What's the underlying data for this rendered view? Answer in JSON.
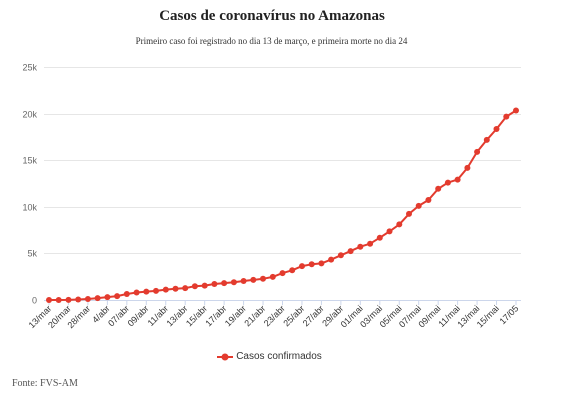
{
  "chart_data": {
    "type": "line",
    "title": "Casos de coronavírus no Amazonas",
    "subtitle": "Primeiro caso foi registrado no dia 13 de março, e primeira morte no dia 24",
    "categories": [
      "13/mar",
      "",
      "20/mar",
      "",
      "28/mar",
      "",
      "4/abr",
      "",
      "07/abr",
      "",
      "09/abr",
      "",
      "11/abr",
      "",
      "13/abr",
      "",
      "15/abr",
      "",
      "17/abr",
      "",
      "19/abr",
      "",
      "21/abr",
      "",
      "23/abr",
      "",
      "25/abr",
      "",
      "27/abr",
      "",
      "29/abr",
      "",
      "01/mai",
      "",
      "03/mai",
      "",
      "05/mai",
      "",
      "07/mai",
      "",
      "09/mai",
      "",
      "11/mai",
      "",
      "13/mai",
      "",
      "15/mai",
      "",
      "17/05"
    ],
    "series": [
      {
        "name": "Casos confirmados",
        "color": "#e33b2e",
        "values": [
          1,
          3,
          11,
          50,
          110,
          200,
          310,
          420,
          640,
          800,
          900,
          980,
          1120,
          1210,
          1280,
          1480,
          1550,
          1720,
          1810,
          1900,
          2040,
          2160,
          2270,
          2480,
          2890,
          3190,
          3640,
          3830,
          3930,
          4340,
          4800,
          5250,
          5720,
          6040,
          6680,
          7360,
          8110,
          9240,
          10100,
          10730,
          11930,
          12600,
          12920,
          14170,
          15890,
          17180,
          18350,
          19680,
          20330
        ]
      }
    ],
    "ylim": [
      0,
      25000
    ],
    "yticks": [
      {
        "value": 0,
        "label": "0"
      },
      {
        "value": 5000,
        "label": "5k"
      },
      {
        "value": 10000,
        "label": "10k"
      },
      {
        "value": 15000,
        "label": "15k"
      },
      {
        "value": 20000,
        "label": "20k"
      },
      {
        "value": 25000,
        "label": "25k"
      }
    ],
    "grid": true,
    "legend": "bottom",
    "source": "Fonte: FVS-AM"
  }
}
